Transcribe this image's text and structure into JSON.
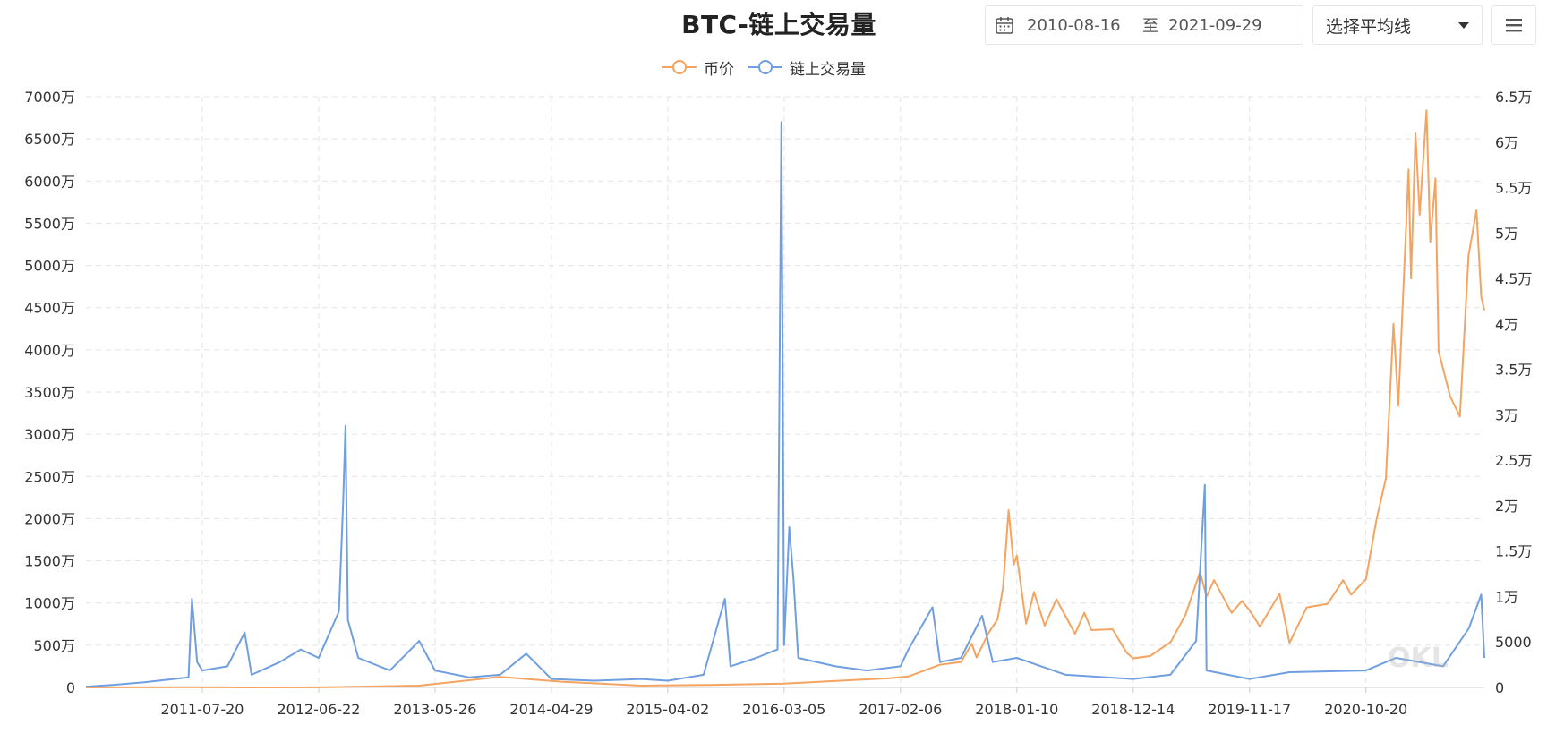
{
  "header": {
    "title": "BTC-链上交易量",
    "date_start": "2010-08-16",
    "date_separator": "至",
    "date_end": "2021-09-29",
    "select_placeholder": "选择平均线"
  },
  "watermark": "OKL",
  "colors": {
    "price": "#f4a460",
    "volume": "#6f9fe0",
    "grid": "#e3e3e3",
    "axis": "#cccccc"
  },
  "icons": {
    "calendar": "calendar-icon",
    "dropdown": "chevron-down-icon",
    "menu": "hamburger-menu-icon"
  },
  "chart_data": {
    "type": "line",
    "title": "BTC-链上交易量",
    "grid": true,
    "legend_position": "top-center",
    "x_ticks": [
      "2011-07-20",
      "2012-06-22",
      "2013-05-26",
      "2014-04-29",
      "2015-04-02",
      "2016-03-05",
      "2017-02-06",
      "2018-01-10",
      "2018-12-14",
      "2019-11-17",
      "2020-10-20"
    ],
    "x_range": [
      "2010-08-16",
      "2021-09-29"
    ],
    "y_left": {
      "ticks": [
        "0",
        "500万",
        "1000万",
        "1500万",
        "2000万",
        "2500万",
        "3000万",
        "3500万",
        "4000万",
        "4500万",
        "5000万",
        "5500万",
        "6000万",
        "6500万",
        "7000万"
      ],
      "range": [
        0,
        70000000
      ]
    },
    "y_right": {
      "ticks": [
        "0",
        "5000",
        "1万",
        "1.5万",
        "2万",
        "2.5万",
        "3万",
        "3.5万",
        "4万",
        "4.5万",
        "5万",
        "5.5万",
        "6万",
        "6.5万"
      ],
      "range": [
        0,
        65000
      ]
    },
    "series": [
      {
        "name": "币价",
        "axis": "right",
        "points": [
          [
            "2010-08-16",
            0.07
          ],
          [
            "2011-06-08",
            30
          ],
          [
            "2011-12-01",
            3
          ],
          [
            "2012-06-22",
            6
          ],
          [
            "2013-04-10",
            200
          ],
          [
            "2013-11-30",
            1150
          ],
          [
            "2014-06-01",
            620
          ],
          [
            "2015-01-15",
            200
          ],
          [
            "2015-08-01",
            280
          ],
          [
            "2016-03-05",
            410
          ],
          [
            "2016-07-01",
            650
          ],
          [
            "2017-01-05",
            1000
          ],
          [
            "2017-03-01",
            1200
          ],
          [
            "2017-06-01",
            2500
          ],
          [
            "2017-08-01",
            2800
          ],
          [
            "2017-09-01",
            4800
          ],
          [
            "2017-09-15",
            3300
          ],
          [
            "2017-10-20",
            6000
          ],
          [
            "2017-11-15",
            7500
          ],
          [
            "2017-12-01",
            11000
          ],
          [
            "2017-12-17",
            19500
          ],
          [
            "2018-01-01",
            13500
          ],
          [
            "2018-01-10",
            14500
          ],
          [
            "2018-02-06",
            7000
          ],
          [
            "2018-03-01",
            10500
          ],
          [
            "2018-04-01",
            6800
          ],
          [
            "2018-05-05",
            9700
          ],
          [
            "2018-06-28",
            5900
          ],
          [
            "2018-07-25",
            8200
          ],
          [
            "2018-08-15",
            6300
          ],
          [
            "2018-10-15",
            6400
          ],
          [
            "2018-11-25",
            3800
          ],
          [
            "2018-12-14",
            3200
          ],
          [
            "2019-02-01",
            3450
          ],
          [
            "2019-04-02",
            5000
          ],
          [
            "2019-05-15",
            8000
          ],
          [
            "2019-06-26",
            12700
          ],
          [
            "2019-07-15",
            10000
          ],
          [
            "2019-08-06",
            11800
          ],
          [
            "2019-09-26",
            8200
          ],
          [
            "2019-10-26",
            9500
          ],
          [
            "2019-11-17",
            8500
          ],
          [
            "2019-12-17",
            6700
          ],
          [
            "2020-02-12",
            10300
          ],
          [
            "2020-03-12",
            4900
          ],
          [
            "2020-05-01",
            8800
          ],
          [
            "2020-07-01",
            9200
          ],
          [
            "2020-08-15",
            11800
          ],
          [
            "2020-09-07",
            10200
          ],
          [
            "2020-10-20",
            11900
          ],
          [
            "2020-11-20",
            18500
          ],
          [
            "2020-12-17",
            23000
          ],
          [
            "2021-01-08",
            40000
          ],
          [
            "2021-01-22",
            31000
          ],
          [
            "2021-02-21",
            57000
          ],
          [
            "2021-02-28",
            45000
          ],
          [
            "2021-03-13",
            61000
          ],
          [
            "2021-03-25",
            52000
          ],
          [
            "2021-04-14",
            63500
          ],
          [
            "2021-04-25",
            49000
          ],
          [
            "2021-05-10",
            56000
          ],
          [
            "2021-05-19",
            37000
          ],
          [
            "2021-06-22",
            32000
          ],
          [
            "2021-07-20",
            29800
          ],
          [
            "2021-08-14",
            47500
          ],
          [
            "2021-09-06",
            52500
          ],
          [
            "2021-09-20",
            43000
          ],
          [
            "2021-09-29",
            41500
          ]
        ]
      },
      {
        "name": "链上交易量",
        "axis": "left",
        "points": [
          [
            "2010-08-16",
            100000
          ],
          [
            "2010-11-01",
            300000
          ],
          [
            "2011-02-01",
            600000
          ],
          [
            "2011-06-10",
            1200000
          ],
          [
            "2011-06-20",
            10500000
          ],
          [
            "2011-07-05",
            3000000
          ],
          [
            "2011-07-20",
            2000000
          ],
          [
            "2011-10-01",
            2500000
          ],
          [
            "2011-11-20",
            6500000
          ],
          [
            "2011-12-10",
            1500000
          ],
          [
            "2012-03-01",
            3000000
          ],
          [
            "2012-05-01",
            4500000
          ],
          [
            "2012-06-22",
            3500000
          ],
          [
            "2012-08-20",
            9000000
          ],
          [
            "2012-09-01",
            22000000
          ],
          [
            "2012-09-08",
            31000000
          ],
          [
            "2012-09-15",
            8000000
          ],
          [
            "2012-10-15",
            3500000
          ],
          [
            "2013-01-15",
            2000000
          ],
          [
            "2013-04-10",
            5500000
          ],
          [
            "2013-05-26",
            2000000
          ],
          [
            "2013-09-01",
            1200000
          ],
          [
            "2013-12-01",
            1500000
          ],
          [
            "2014-02-15",
            4000000
          ],
          [
            "2014-04-29",
            1000000
          ],
          [
            "2014-09-01",
            800000
          ],
          [
            "2015-01-15",
            1000000
          ],
          [
            "2015-04-02",
            800000
          ],
          [
            "2015-07-15",
            1500000
          ],
          [
            "2015-09-15",
            10500000
          ],
          [
            "2015-10-01",
            2500000
          ],
          [
            "2015-12-15",
            3500000
          ],
          [
            "2016-02-15",
            4500000
          ],
          [
            "2016-02-26",
            67000000
          ],
          [
            "2016-03-05",
            5000000
          ],
          [
            "2016-03-20",
            19000000
          ],
          [
            "2016-04-01",
            13000000
          ],
          [
            "2016-04-15",
            3500000
          ],
          [
            "2016-08-01",
            2500000
          ],
          [
            "2016-11-01",
            2000000
          ],
          [
            "2017-02-06",
            2500000
          ],
          [
            "2017-03-01",
            4500000
          ],
          [
            "2017-05-10",
            9500000
          ],
          [
            "2017-06-01",
            3000000
          ],
          [
            "2017-08-01",
            3500000
          ],
          [
            "2017-10-01",
            8500000
          ],
          [
            "2017-11-01",
            3000000
          ],
          [
            "2018-01-10",
            3500000
          ],
          [
            "2018-06-01",
            1500000
          ],
          [
            "2018-12-14",
            1000000
          ],
          [
            "2019-04-01",
            1500000
          ],
          [
            "2019-06-15",
            5500000
          ],
          [
            "2019-07-10",
            24000000
          ],
          [
            "2019-07-15",
            2000000
          ],
          [
            "2019-11-17",
            1000000
          ],
          [
            "2020-03-12",
            1800000
          ],
          [
            "2020-10-20",
            2000000
          ],
          [
            "2021-01-15",
            3500000
          ],
          [
            "2021-06-01",
            2500000
          ],
          [
            "2021-08-15",
            7000000
          ],
          [
            "2021-09-20",
            11000000
          ],
          [
            "2021-09-29",
            3500000
          ]
        ]
      }
    ]
  }
}
